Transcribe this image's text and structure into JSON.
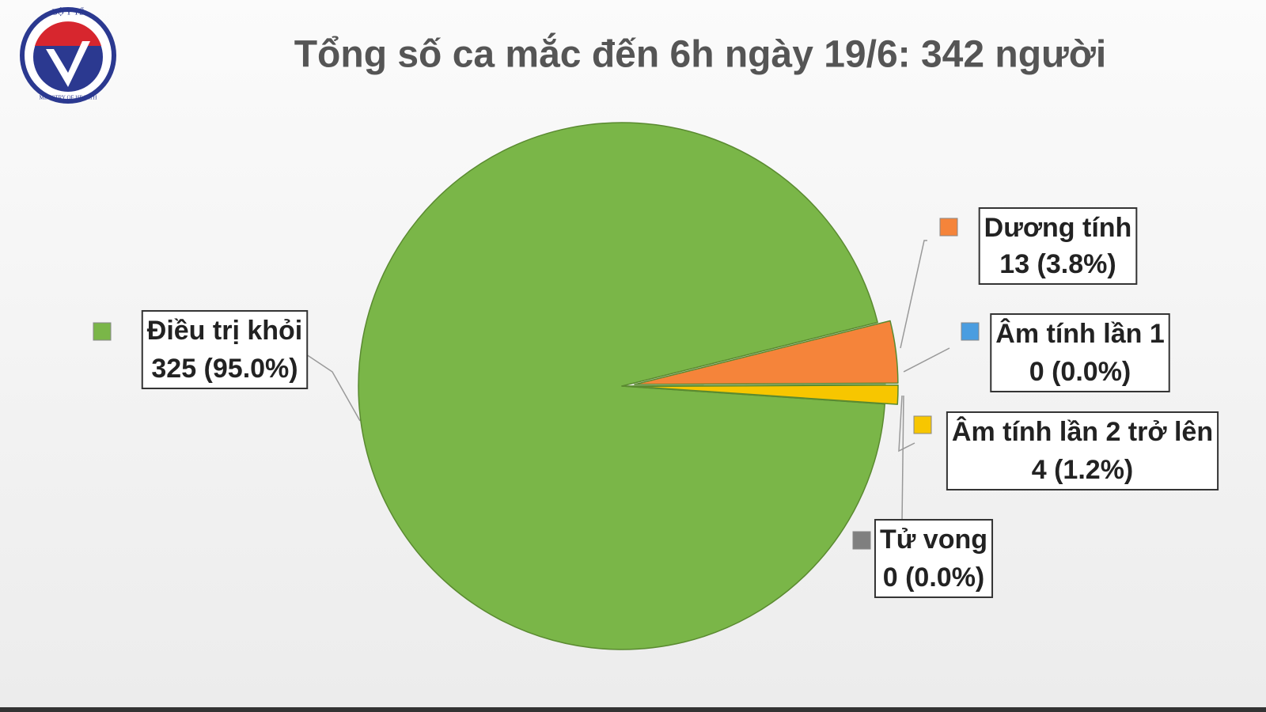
{
  "logo": {
    "top": "BỘ Y TẾ",
    "bottom": "MINISTRY OF HEALTH"
  },
  "chart_data": {
    "type": "pie",
    "title": "Tổng số ca mắc đến 6h ngày 19/6: 342 người",
    "categories": [
      "Điều trị khỏi",
      "Dương tính",
      "Âm tính lần 1",
      "Âm tính lần 2 trở lên",
      "Tử vong"
    ],
    "values": [
      325,
      13,
      0,
      4,
      0
    ],
    "value_labels": [
      "325 (95.0%)",
      "13 (3.8%)",
      "0 (0.0%)",
      "4 (1.2%)",
      "0 (0.0%)"
    ],
    "colors": [
      "#7ab648",
      "#f5843a",
      "#4a9de0",
      "#f7c600",
      "#7f7f7f"
    ]
  }
}
